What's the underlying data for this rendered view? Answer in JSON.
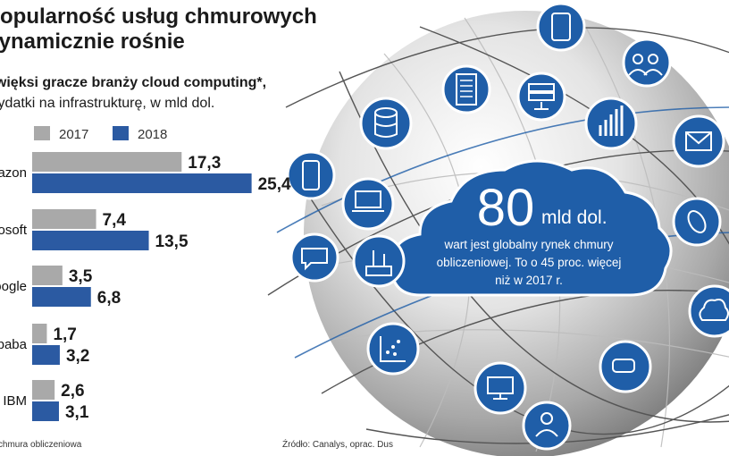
{
  "title": {
    "line1": "Popularność usług chmurowych",
    "line2": "dynamicznie rośnie"
  },
  "subtitle": {
    "line1": "Najwięksi gracze branży cloud computing*,",
    "line2": "wydatki na infrastrukturę, w mld dol."
  },
  "legend": [
    {
      "label": "2017",
      "color": "#a9a9a9"
    },
    {
      "label": "2018",
      "color": "#2b5aa2"
    }
  ],
  "chart_data": {
    "type": "bar",
    "orientation": "horizontal",
    "categories": [
      "Amazon",
      "Microsoft",
      "Google",
      "Alibaba",
      "IBM"
    ],
    "series": [
      {
        "name": "2017",
        "values": [
          17.3,
          7.4,
          3.5,
          1.7,
          2.6
        ],
        "labels": [
          "17,3",
          "7,4",
          "3,5",
          "1,7",
          "2,6"
        ]
      },
      {
        "name": "2018",
        "values": [
          25.4,
          13.5,
          6.8,
          3.2,
          3.1
        ],
        "labels": [
          "25,4",
          "13,5",
          "6,8",
          "3,2",
          "3,1"
        ]
      }
    ]
  },
  "cloud": {
    "big": "80",
    "unit": "mld dol.",
    "text1": "wart jest globalny rynek chmury",
    "text2": "obliczeniowej. To o 45 proc. więcej",
    "text3": "niż w 2017 r."
  },
  "footer": {
    "note": "*chmura obliczeniowa",
    "source": "Źródło: Canalys, oprac. Dus"
  },
  "icons": [
    "tablet-icon",
    "users-icon",
    "server-rack-icon",
    "server-icon",
    "database-icon",
    "bar-chart-icon",
    "mail-icon",
    "smartphone-icon",
    "laptop-icon",
    "router-icon",
    "chat-icon",
    "link-icon",
    "cloud-icon",
    "scatter-chart-icon",
    "monitor-icon",
    "vr-headset-icon",
    "user-icon"
  ],
  "colors": {
    "accent": "#1f5ea8",
    "bar2017": "#a9a9a9",
    "bar2018": "#2b5aa2"
  }
}
